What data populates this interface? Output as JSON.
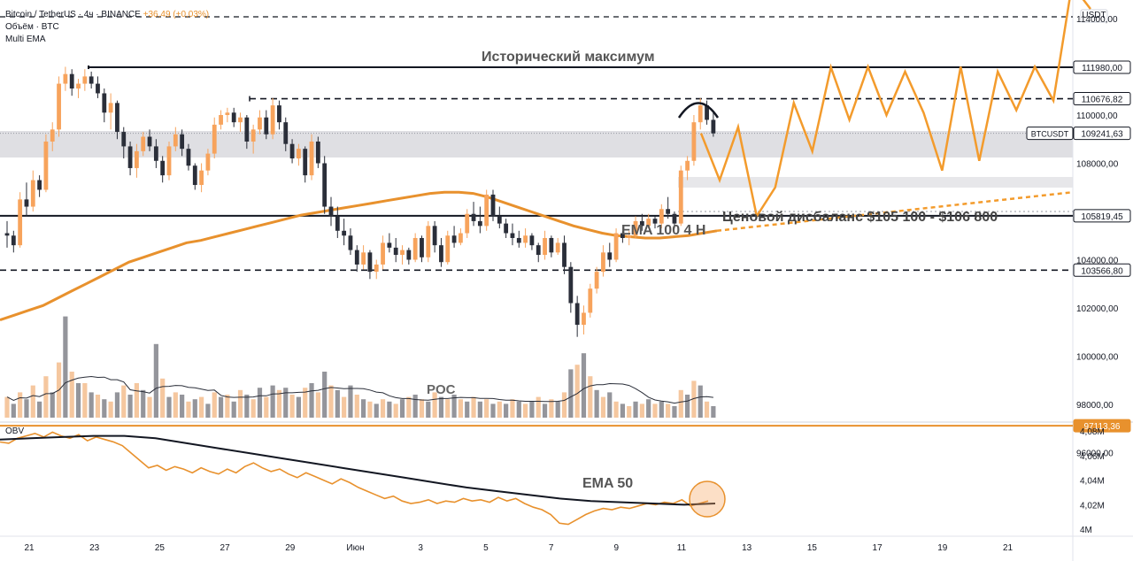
{
  "header": {
    "symbol": "Bitcoin / TetherUS · 4ч · BINANCE",
    "change": "+36,49 (+0,03%)",
    "volume_label": "Объём · BTC",
    "ema_label": "Multi EMA",
    "obv_label": "OBV"
  },
  "colors": {
    "bull": "#f7a35c",
    "bear": "#2a2e39",
    "ema": "#e8912d",
    "projection": "#f39b2c",
    "level": "#131722"
  },
  "chart_data": {
    "type": "candlestick",
    "currency_label": "USDT",
    "price_ticks": [
      "114000,00",
      "110000,00",
      "108000,00",
      "104000,00",
      "102000,00",
      "100000,00",
      "98000,00",
      "96000,00"
    ],
    "date_ticks": [
      "21",
      "23",
      "25",
      "27",
      "29",
      "Июн",
      "3",
      "5",
      "7",
      "9",
      "11",
      "13",
      "15",
      "17",
      "19",
      "21"
    ],
    "obv_ticks": [
      "4,08M",
      "4,06M",
      "4,04M",
      "4,02M",
      "4M"
    ],
    "levels": [
      {
        "value": 111980,
        "label": "111980,00",
        "style": "solid"
      },
      {
        "value": 110676.82,
        "label": "110676,82",
        "style": "dashed"
      },
      {
        "value": 109241.63,
        "label": "109241,63",
        "style": "price",
        "tag": "BTCUSDT"
      },
      {
        "value": 105819.45,
        "label": "105819,45",
        "style": "solid"
      },
      {
        "value": 103566.8,
        "label": "103566,80",
        "style": "dashed"
      },
      {
        "value": 97113.36,
        "label": "97113,36",
        "style": "orange"
      }
    ],
    "annotations": {
      "ath": "Исторический максимум",
      "imbalance": "Ценовой дисбаланс $105 100 - $106 800",
      "ema100": "EMA 100 4 H",
      "poc": "POC",
      "ema50": "EMA 50"
    },
    "candles": [
      [
        105100,
        105600,
        104500,
        105000
      ],
      [
        105000,
        105200,
        104300,
        104600
      ],
      [
        104600,
        106800,
        104500,
        106500
      ],
      [
        106500,
        107200,
        105800,
        106200
      ],
      [
        106200,
        107700,
        106000,
        107300
      ],
      [
        107300,
        107500,
        106600,
        106900
      ],
      [
        106900,
        109200,
        106800,
        108900
      ],
      [
        108900,
        109700,
        108500,
        109400
      ],
      [
        109400,
        111600,
        109100,
        111300
      ],
      [
        111300,
        112000,
        111000,
        111700
      ],
      [
        111700,
        111900,
        110800,
        111100
      ],
      [
        111100,
        111500,
        110700,
        111300
      ],
      [
        111300,
        111900,
        111000,
        111600
      ],
      [
        111600,
        111800,
        111100,
        111300
      ],
      [
        111300,
        111600,
        110700,
        110900
      ],
      [
        110900,
        111100,
        109700,
        110100
      ],
      [
        110100,
        110900,
        109400,
        110500
      ],
      [
        110500,
        110600,
        109000,
        109300
      ],
      [
        109300,
        109500,
        108200,
        108700
      ],
      [
        108700,
        108900,
        107500,
        107800
      ],
      [
        107800,
        108800,
        107400,
        108500
      ],
      [
        108500,
        109300,
        108300,
        109100
      ],
      [
        109100,
        109400,
        108500,
        108700
      ],
      [
        108700,
        109000,
        107800,
        108100
      ],
      [
        108100,
        108300,
        107200,
        107500
      ],
      [
        107500,
        108900,
        107300,
        108700
      ],
      [
        108700,
        109500,
        108500,
        109200
      ],
      [
        109200,
        109400,
        108300,
        108600
      ],
      [
        108600,
        108800,
        107700,
        107900
      ],
      [
        107900,
        108000,
        106900,
        107100
      ],
      [
        107100,
        108000,
        106800,
        107700
      ],
      [
        107700,
        108600,
        107500,
        108400
      ],
      [
        108400,
        109900,
        108200,
        109600
      ],
      [
        109600,
        110200,
        109400,
        110000
      ],
      [
        110000,
        110300,
        109700,
        110100
      ],
      [
        110100,
        110300,
        109500,
        109700
      ],
      [
        109700,
        110100,
        109300,
        109900
      ],
      [
        109900,
        110000,
        108600,
        108900
      ],
      [
        108900,
        109600,
        108400,
        109400
      ],
      [
        109400,
        110200,
        109200,
        109900
      ],
      [
        109900,
        110200,
        109000,
        109200
      ],
      [
        109200,
        110700,
        109000,
        110400
      ],
      [
        110400,
        110600,
        109400,
        109700
      ],
      [
        109700,
        109900,
        108500,
        108800
      ],
      [
        108800,
        109000,
        108000,
        108200
      ],
      [
        108200,
        108800,
        107900,
        108600
      ],
      [
        108600,
        108700,
        107200,
        107500
      ],
      [
        107500,
        109200,
        107300,
        108900
      ],
      [
        108900,
        109100,
        107800,
        108000
      ],
      [
        108000,
        108300,
        105900,
        106200
      ],
      [
        106200,
        106600,
        105400,
        105800
      ],
      [
        105800,
        106200,
        104900,
        105200
      ],
      [
        105200,
        105700,
        104600,
        105000
      ],
      [
        105000,
        105300,
        104200,
        104400
      ],
      [
        104400,
        104600,
        103500,
        103800
      ],
      [
        103800,
        104600,
        103600,
        104300
      ],
      [
        104300,
        104400,
        103200,
        103500
      ],
      [
        103500,
        104000,
        103200,
        103800
      ],
      [
        103800,
        105000,
        103600,
        104700
      ],
      [
        104700,
        105100,
        104300,
        104500
      ],
      [
        104500,
        104900,
        103900,
        104200
      ],
      [
        104200,
        104600,
        103800,
        104400
      ],
      [
        104400,
        104500,
        103800,
        104000
      ],
      [
        104000,
        105100,
        103900,
        104900
      ],
      [
        104900,
        105000,
        103900,
        104100
      ],
      [
        104100,
        105600,
        103900,
        105400
      ],
      [
        105400,
        105600,
        104300,
        104600
      ],
      [
        104600,
        104900,
        103700,
        103900
      ],
      [
        103900,
        105200,
        103800,
        105000
      ],
      [
        105000,
        105400,
        104500,
        104700
      ],
      [
        104700,
        105300,
        104600,
        105100
      ],
      [
        105100,
        106100,
        104900,
        105900
      ],
      [
        105900,
        106400,
        105400,
        105600
      ],
      [
        105600,
        106200,
        105100,
        105400
      ],
      [
        105400,
        106900,
        105200,
        106700
      ],
      [
        106700,
        106900,
        105600,
        105800
      ],
      [
        105800,
        106200,
        105300,
        105500
      ],
      [
        105500,
        105700,
        104900,
        105100
      ],
      [
        105100,
        105500,
        104600,
        104900
      ],
      [
        104900,
        105200,
        104500,
        104700
      ],
      [
        104700,
        105300,
        104500,
        105000
      ],
      [
        105000,
        105100,
        104400,
        104600
      ],
      [
        104600,
        104700,
        103900,
        104200
      ],
      [
        104200,
        105200,
        104000,
        104900
      ],
      [
        104900,
        105000,
        104100,
        104300
      ],
      [
        104300,
        104900,
        104200,
        104700
      ],
      [
        104700,
        105000,
        103400,
        103700
      ],
      [
        103700,
        103900,
        101800,
        102200
      ],
      [
        102200,
        102500,
        100800,
        101300
      ],
      [
        101300,
        102100,
        100900,
        101800
      ],
      [
        101800,
        103000,
        101600,
        102800
      ],
      [
        102800,
        103700,
        102600,
        103500
      ],
      [
        103500,
        104600,
        103300,
        104300
      ],
      [
        104300,
        104700,
        103700,
        104000
      ],
      [
        104000,
        105300,
        103900,
        105100
      ],
      [
        105100,
        105200,
        104700,
        104900
      ],
      [
        104900,
        105200,
        104600,
        105000
      ],
      [
        105000,
        105800,
        104900,
        105600
      ],
      [
        105600,
        105900,
        105200,
        105400
      ],
      [
        105400,
        105900,
        105300,
        105700
      ],
      [
        105700,
        105800,
        105300,
        105500
      ],
      [
        105500,
        106300,
        105300,
        106100
      ],
      [
        106100,
        106600,
        105700,
        105900
      ],
      [
        105900,
        106000,
        105300,
        105500
      ],
      [
        105500,
        107900,
        105400,
        107700
      ],
      [
        107700,
        108300,
        107300,
        108100
      ],
      [
        108100,
        110000,
        107900,
        109700
      ],
      [
        109700,
        110700,
        109400,
        110400
      ],
      [
        110400,
        110600,
        109600,
        109800
      ],
      [
        109800,
        110100,
        109100,
        109240
      ]
    ],
    "volumes": [
      [
        18,
        1
      ],
      [
        12,
        0
      ],
      [
        22,
        1
      ],
      [
        16,
        0
      ],
      [
        28,
        1
      ],
      [
        14,
        0
      ],
      [
        36,
        1
      ],
      [
        22,
        0
      ],
      [
        48,
        1
      ],
      [
        88,
        0
      ],
      [
        40,
        1
      ],
      [
        30,
        0
      ],
      [
        30,
        1
      ],
      [
        22,
        0
      ],
      [
        20,
        1
      ],
      [
        16,
        0
      ],
      [
        14,
        1
      ],
      [
        22,
        0
      ],
      [
        28,
        1
      ],
      [
        20,
        0
      ],
      [
        30,
        1
      ],
      [
        24,
        0
      ],
      [
        18,
        1
      ],
      [
        64,
        0
      ],
      [
        34,
        1
      ],
      [
        18,
        0
      ],
      [
        22,
        1
      ],
      [
        20,
        0
      ],
      [
        14,
        1
      ],
      [
        16,
        0
      ],
      [
        18,
        1
      ],
      [
        12,
        0
      ],
      [
        22,
        1
      ],
      [
        18,
        0
      ],
      [
        20,
        1
      ],
      [
        14,
        0
      ],
      [
        24,
        1
      ],
      [
        20,
        0
      ],
      [
        16,
        1
      ],
      [
        26,
        0
      ],
      [
        18,
        1
      ],
      [
        28,
        0
      ],
      [
        24,
        1
      ],
      [
        26,
        0
      ],
      [
        20,
        1
      ],
      [
        18,
        0
      ],
      [
        26,
        1
      ],
      [
        30,
        0
      ],
      [
        22,
        1
      ],
      [
        40,
        0
      ],
      [
        28,
        1
      ],
      [
        24,
        0
      ],
      [
        18,
        1
      ],
      [
        28,
        0
      ],
      [
        20,
        1
      ],
      [
        16,
        0
      ],
      [
        14,
        1
      ],
      [
        12,
        0
      ],
      [
        16,
        1
      ],
      [
        14,
        0
      ],
      [
        12,
        1
      ],
      [
        16,
        0
      ],
      [
        18,
        1
      ],
      [
        20,
        0
      ],
      [
        16,
        1
      ],
      [
        14,
        0
      ],
      [
        22,
        1
      ],
      [
        18,
        0
      ],
      [
        16,
        1
      ],
      [
        20,
        0
      ],
      [
        16,
        1
      ],
      [
        14,
        0
      ],
      [
        18,
        1
      ],
      [
        14,
        0
      ],
      [
        16,
        1
      ],
      [
        12,
        0
      ],
      [
        14,
        1
      ],
      [
        12,
        0
      ],
      [
        16,
        1
      ],
      [
        14,
        0
      ],
      [
        12,
        1
      ],
      [
        14,
        0
      ],
      [
        18,
        1
      ],
      [
        12,
        0
      ],
      [
        16,
        1
      ],
      [
        14,
        0
      ],
      [
        22,
        1
      ],
      [
        42,
        0
      ],
      [
        46,
        1
      ],
      [
        56,
        0
      ],
      [
        36,
        1
      ],
      [
        24,
        0
      ],
      [
        18,
        1
      ],
      [
        22,
        0
      ],
      [
        14,
        1
      ],
      [
        12,
        0
      ],
      [
        10,
        1
      ],
      [
        14,
        0
      ],
      [
        12,
        1
      ],
      [
        16,
        0
      ],
      [
        12,
        1
      ],
      [
        14,
        0
      ],
      [
        12,
        1
      ],
      [
        10,
        0
      ],
      [
        24,
        1
      ],
      [
        20,
        0
      ],
      [
        32,
        1
      ],
      [
        28,
        0
      ],
      [
        14,
        1
      ],
      [
        10,
        0
      ]
    ],
    "ema100": [
      101500,
      101700,
      101900,
      102100,
      102400,
      102700,
      103000,
      103300,
      103600,
      103900,
      104100,
      104300,
      104500,
      104700,
      104800,
      104950,
      105100,
      105250,
      105400,
      105550,
      105700,
      105850,
      105950,
      106050,
      106150,
      106250,
      106350,
      106450,
      106550,
      106650,
      106750,
      106800,
      106800,
      106750,
      106600,
      106400,
      106200,
      106000,
      105800,
      105600,
      105400,
      105250,
      105100,
      105000,
      104950,
      104900,
      104900,
      104950,
      105000,
      105100,
      105200
    ],
    "obv_ema50": [
      4.073,
      4.074,
      4.075,
      4.076,
      4.076,
      4.074,
      4.07,
      4.066,
      4.062,
      4.058,
      4.054,
      4.05,
      4.046,
      4.042,
      4.038,
      4.034,
      4.031,
      4.028,
      4.025,
      4.023,
      4.022,
      4.021,
      4.02,
      4.021
    ],
    "obv": [
      4.071,
      4.07,
      4.074,
      4.076,
      4.078,
      4.075,
      4.079,
      4.076,
      4.074,
      4.077,
      4.072,
      4.075,
      4.073,
      4.071,
      4.068,
      4.062,
      4.056,
      4.05,
      4.052,
      4.048,
      4.051,
      4.049,
      4.046,
      4.05,
      4.047,
      4.045,
      4.049,
      4.046,
      4.051,
      4.054,
      4.05,
      4.047,
      4.049,
      4.045,
      4.042,
      4.046,
      4.043,
      4.04,
      4.037,
      4.041,
      4.038,
      4.034,
      4.031,
      4.028,
      4.025,
      4.027,
      4.023,
      4.021,
      4.022,
      4.024,
      4.021,
      4.023,
      4.022,
      4.025,
      4.023,
      4.024,
      4.022,
      4.026,
      4.023,
      4.025,
      4.021,
      4.018,
      4.016,
      4.012,
      4.005,
      4.004,
      4.008,
      4.012,
      4.015,
      4.017,
      4.016,
      4.018,
      4.017,
      4.019,
      4.021,
      4.02,
      4.022,
      4.021,
      4.024,
      4.019,
      4.021,
      4.023
    ],
    "projection_prices": [
      109240,
      107300,
      109500,
      105800,
      107000,
      110500,
      108500,
      111980,
      109800,
      112000,
      110000,
      111800,
      110100,
      107700,
      112000,
      108100,
      111800,
      110200,
      112000,
      110600,
      115400,
      114400
    ]
  }
}
